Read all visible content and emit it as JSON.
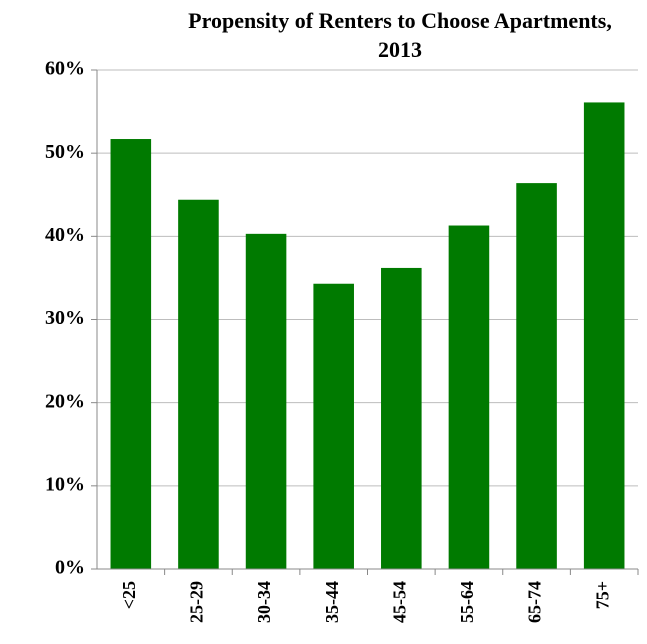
{
  "chart_data": {
    "type": "bar",
    "title": "Propensity of Renters to Choose Apartments, 2013",
    "categories": [
      "<25",
      "25-29",
      "30-34",
      "35-44",
      "45-54",
      "55-64",
      "65-74",
      "75+"
    ],
    "values": [
      51.7,
      44.4,
      40.3,
      34.3,
      36.2,
      41.3,
      46.4,
      56.1
    ],
    "color": "#007a00",
    "ylim": [
      0,
      60
    ],
    "yticks": [
      {
        "value": 0,
        "label": "0%"
      },
      {
        "value": 10,
        "label": "10%"
      },
      {
        "value": 20,
        "label": "20%"
      },
      {
        "value": 30,
        "label": "30%"
      },
      {
        "value": 40,
        "label": "40%"
      },
      {
        "value": 50,
        "label": "50%"
      },
      {
        "value": 60,
        "label": "60%"
      }
    ],
    "grid": true
  }
}
